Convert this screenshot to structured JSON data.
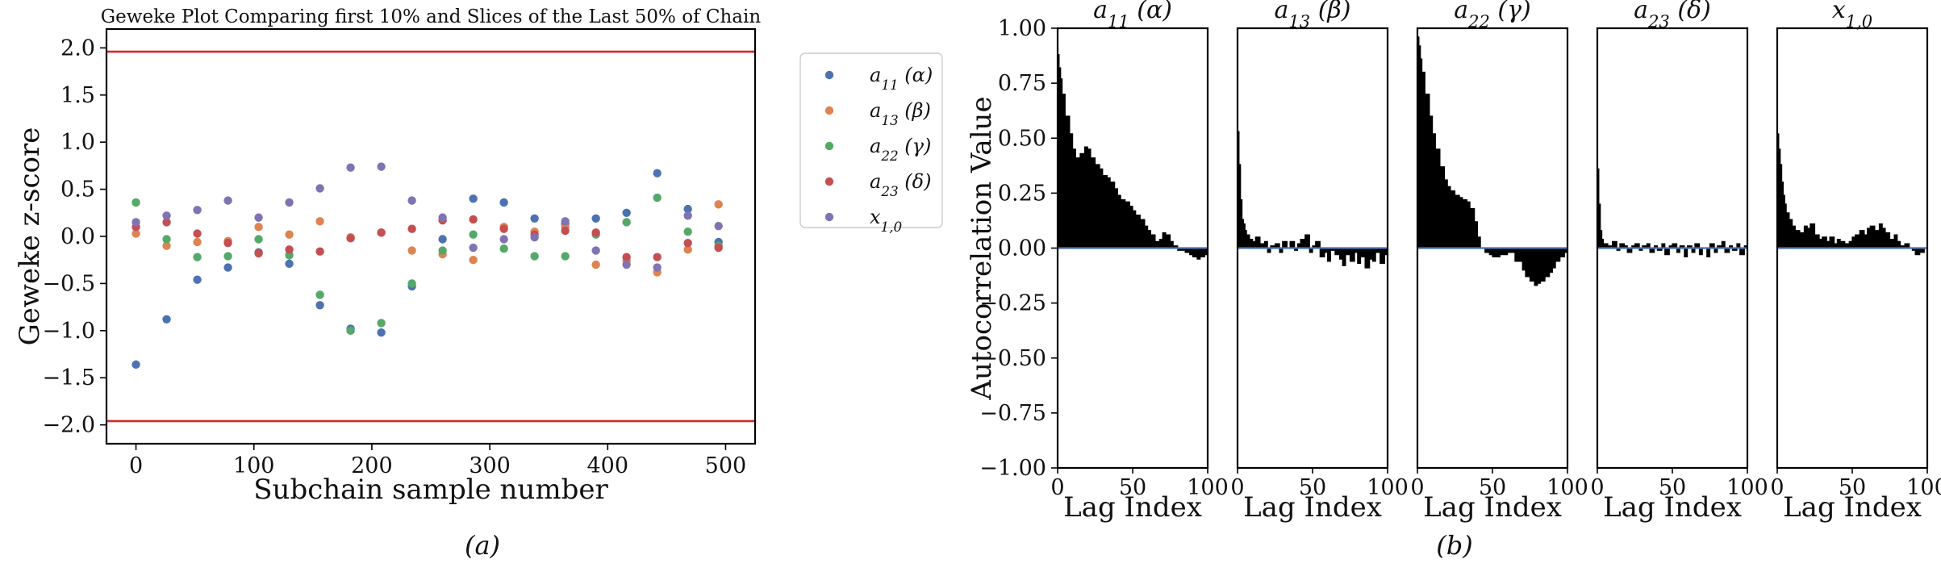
{
  "chart_data": [
    {
      "type": "scatter",
      "title": "Geweke Plot Comparing first 10% and Slices of the Last 50% of Chain",
      "xlabel": "Subchain sample number",
      "ylabel": "Geweke z-score",
      "xlim": [
        -25,
        525
      ],
      "ylim": [
        -2.2,
        2.2
      ],
      "xticks": [
        0,
        100,
        200,
        300,
        400,
        500
      ],
      "yticks": [
        2.0,
        1.5,
        1.0,
        0.5,
        0.0,
        -0.5,
        -1.0,
        -1.5,
        -2.0
      ],
      "ytick_labels": [
        "2.0",
        "1.5",
        "1.0",
        "0.5",
        "0.0",
        "−0.5",
        "−1.0",
        "−1.5",
        "−2.0"
      ],
      "hlines": [
        1.96,
        -1.96
      ],
      "hline_color": "#d62728",
      "caption": "(a)",
      "x": [
        0,
        26,
        52,
        78,
        104,
        130,
        156,
        182,
        208,
        234,
        260,
        286,
        312,
        338,
        364,
        390,
        416,
        442,
        468,
        494
      ],
      "series": [
        {
          "name": "a11 (α)",
          "legend": {
            "base": "a",
            "sub": "11",
            "suffix": " (α)"
          },
          "color": "#4c72b0",
          "values": [
            -1.36,
            -0.88,
            -0.46,
            -0.33,
            -0.17,
            -0.29,
            -0.73,
            -0.98,
            -1.02,
            -0.53,
            -0.03,
            0.4,
            0.36,
            0.19,
            0.13,
            0.19,
            0.25,
            0.67,
            0.29,
            -0.06
          ]
        },
        {
          "name": "a13 (β)",
          "legend": {
            "base": "a",
            "sub": "13",
            "suffix": " (β)"
          },
          "color": "#dd8452",
          "values": [
            0.03,
            -0.1,
            -0.06,
            -0.05,
            0.1,
            0.02,
            0.16,
            -0.01,
            0.04,
            -0.15,
            -0.19,
            -0.25,
            0.1,
            0.05,
            0.1,
            -0.3,
            -0.26,
            -0.38,
            -0.14,
            0.34
          ]
        },
        {
          "name": "a22 (γ)",
          "legend": {
            "base": "a",
            "sub": "22",
            "suffix": " (γ)"
          },
          "color": "#55a868",
          "values": [
            0.36,
            -0.03,
            -0.22,
            -0.21,
            -0.03,
            -0.2,
            -0.62,
            -1.0,
            -0.92,
            -0.5,
            -0.15,
            0.02,
            -0.13,
            -0.21,
            -0.21,
            0.02,
            0.15,
            0.41,
            0.05,
            -0.1
          ]
        },
        {
          "name": "a23 (δ)",
          "legend": {
            "base": "a",
            "sub": "23",
            "suffix": " (δ)"
          },
          "color": "#c44e52",
          "values": [
            0.1,
            0.15,
            0.03,
            -0.07,
            -0.18,
            -0.14,
            -0.16,
            -0.02,
            0.04,
            0.08,
            0.17,
            0.18,
            0.08,
            0.02,
            0.06,
            0.04,
            -0.22,
            -0.22,
            -0.07,
            -0.12
          ]
        },
        {
          "name": "x1,0",
          "legend": {
            "base": "x",
            "sub": "1,0",
            "suffix": ""
          },
          "color": "#8172b3",
          "values": [
            0.15,
            0.22,
            0.28,
            0.38,
            0.2,
            0.36,
            0.51,
            0.73,
            0.74,
            0.38,
            0.2,
            -0.12,
            -0.03,
            -0.01,
            0.16,
            -0.15,
            -0.3,
            -0.33,
            0.22,
            0.11
          ]
        }
      ]
    },
    {
      "type": "area",
      "ylabel": "Autocorrelation Value",
      "xlabel": "Lag Index",
      "xlim": [
        0,
        100
      ],
      "ylim": [
        -1.0,
        1.0
      ],
      "xticks": [
        0,
        50,
        100
      ],
      "yticks": [
        1.0,
        0.75,
        0.5,
        0.25,
        0.0,
        -0.25,
        -0.5,
        -0.75,
        -1.0
      ],
      "ytick_labels": [
        "1.00",
        "0.75",
        "0.50",
        "0.25",
        "0.00",
        "−0.25",
        "−0.50",
        "−0.75",
        "−1.00"
      ],
      "fill_color": "#000000",
      "zero_line_color": "#4c72b0",
      "caption": "(b)",
      "panels": [
        {
          "title": "a11 (α)",
          "title_parts": {
            "base": "a",
            "sub": "11",
            "suffix": " (α)"
          },
          "lags": [
            0,
            1,
            2,
            3,
            5,
            8,
            10,
            12,
            15,
            18,
            20,
            22,
            25,
            28,
            30,
            33,
            35,
            38,
            40,
            42,
            45,
            48,
            50,
            52,
            55,
            58,
            60,
            62,
            65,
            68,
            70,
            72,
            75,
            77,
            80,
            83,
            85,
            88,
            90,
            93,
            95,
            98,
            100
          ],
          "values": [
            0.88,
            0.82,
            0.77,
            0.7,
            0.6,
            0.52,
            0.45,
            0.41,
            0.43,
            0.46,
            0.45,
            0.41,
            0.38,
            0.36,
            0.33,
            0.32,
            0.3,
            0.27,
            0.24,
            0.22,
            0.21,
            0.19,
            0.17,
            0.15,
            0.13,
            0.1,
            0.08,
            0.06,
            0.03,
            0.04,
            0.07,
            0.06,
            0.03,
            0.01,
            -0.01,
            -0.01,
            -0.02,
            -0.03,
            -0.04,
            -0.05,
            -0.04,
            -0.03,
            -0.04
          ]
        },
        {
          "title": "a13 (β)",
          "title_parts": {
            "base": "a",
            "sub": "13",
            "suffix": " (β)"
          },
          "lags": [
            0,
            1,
            2,
            3,
            4,
            5,
            6,
            8,
            10,
            12,
            15,
            18,
            20,
            22,
            25,
            28,
            30,
            33,
            35,
            38,
            40,
            42,
            45,
            48,
            50,
            52,
            55,
            58,
            60,
            62,
            65,
            68,
            70,
            72,
            75,
            78,
            80,
            82,
            85,
            88,
            90,
            92,
            95,
            98,
            100
          ],
          "values": [
            0.53,
            0.38,
            0.22,
            0.13,
            0.11,
            0.08,
            0.06,
            0.04,
            0.03,
            0.05,
            0.02,
            0.03,
            -0.02,
            0.01,
            0.02,
            -0.02,
            0.03,
            0.0,
            0.03,
            -0.01,
            0.02,
            0.04,
            0.06,
            -0.02,
            0.01,
            0.03,
            -0.04,
            -0.02,
            -0.06,
            -0.01,
            -0.03,
            -0.05,
            -0.08,
            -0.03,
            -0.06,
            -0.02,
            -0.07,
            -0.04,
            -0.09,
            -0.05,
            -0.06,
            -0.02,
            -0.07,
            -0.03,
            -0.06
          ]
        },
        {
          "title": "a22 (γ)",
          "title_parts": {
            "base": "a",
            "sub": "22",
            "suffix": " (γ)"
          },
          "lags": [
            0,
            1,
            2,
            3,
            5,
            8,
            10,
            12,
            15,
            18,
            20,
            22,
            25,
            28,
            30,
            33,
            35,
            38,
            40,
            42,
            45,
            48,
            50,
            55,
            60,
            65,
            70,
            72,
            75,
            78,
            80,
            82,
            85,
            88,
            90,
            92,
            95,
            98,
            100
          ],
          "values": [
            0.96,
            0.92,
            0.86,
            0.8,
            0.7,
            0.6,
            0.52,
            0.45,
            0.37,
            0.31,
            0.28,
            0.26,
            0.24,
            0.23,
            0.22,
            0.21,
            0.18,
            0.12,
            0.05,
            0.0,
            -0.02,
            -0.03,
            -0.04,
            -0.03,
            -0.02,
            -0.06,
            -0.1,
            -0.13,
            -0.15,
            -0.17,
            -0.16,
            -0.15,
            -0.13,
            -0.11,
            -0.09,
            -0.06,
            -0.04,
            -0.02,
            -0.01
          ]
        },
        {
          "title": "a23 (δ)",
          "title_parts": {
            "base": "a",
            "sub": "23",
            "suffix": " (δ)"
          },
          "lags": [
            0,
            1,
            2,
            3,
            4,
            5,
            7,
            10,
            13,
            15,
            18,
            20,
            23,
            25,
            28,
            30,
            33,
            35,
            38,
            40,
            43,
            45,
            48,
            50,
            53,
            55,
            58,
            60,
            63,
            65,
            68,
            70,
            73,
            75,
            78,
            80,
            83,
            85,
            88,
            90,
            93,
            95,
            98,
            100
          ],
          "values": [
            0.36,
            0.2,
            0.08,
            0.04,
            0.02,
            0.02,
            0.01,
            0.03,
            -0.01,
            0.02,
            0.01,
            -0.02,
            0.01,
            0.02,
            -0.01,
            0.01,
            0.02,
            -0.02,
            0.01,
            -0.01,
            0.02,
            -0.03,
            0.01,
            0.02,
            -0.02,
            0.01,
            -0.04,
            0.01,
            -0.02,
            0.02,
            -0.03,
            0.0,
            -0.04,
            0.02,
            -0.02,
            0.01,
            0.03,
            -0.02,
            0.01,
            -0.01,
            0.02,
            -0.03,
            0.01,
            -0.02
          ]
        },
        {
          "title": "x1,0",
          "title_parts": {
            "base": "x",
            "sub": "1,0",
            "suffix": ""
          },
          "lags": [
            0,
            1,
            2,
            3,
            4,
            5,
            6,
            8,
            10,
            12,
            15,
            18,
            20,
            22,
            25,
            28,
            30,
            33,
            35,
            38,
            40,
            42,
            45,
            48,
            50,
            52,
            55,
            58,
            60,
            62,
            65,
            68,
            70,
            72,
            75,
            78,
            80,
            82,
            85,
            88,
            90,
            92,
            95,
            98,
            100
          ],
          "values": [
            0.52,
            0.45,
            0.38,
            0.3,
            0.24,
            0.2,
            0.16,
            0.13,
            0.1,
            0.08,
            0.07,
            0.1,
            0.09,
            0.11,
            0.06,
            0.04,
            0.05,
            0.03,
            0.05,
            0.02,
            0.04,
            0.03,
            0.02,
            0.03,
            0.05,
            0.06,
            0.08,
            0.06,
            0.09,
            0.1,
            0.08,
            0.11,
            0.09,
            0.07,
            0.04,
            0.06,
            0.03,
            0.01,
            0.02,
            0.0,
            -0.01,
            -0.03,
            -0.02,
            0.0,
            0.01
          ]
        }
      ]
    }
  ]
}
